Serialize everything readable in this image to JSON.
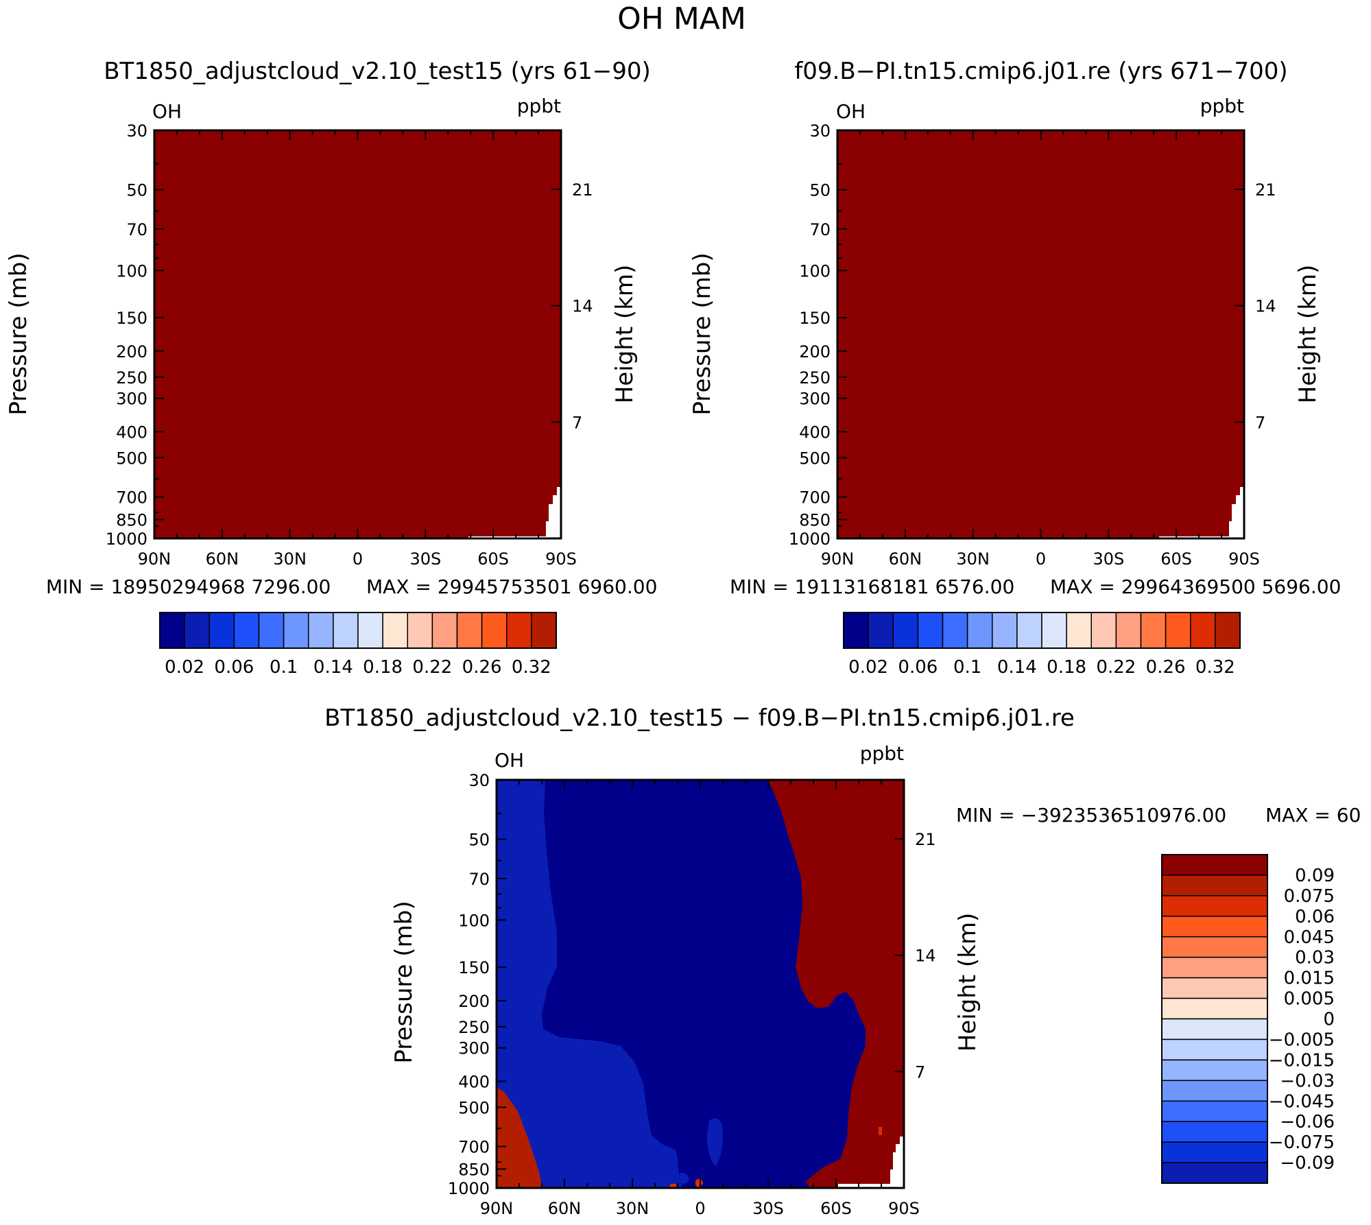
{
  "page_title": "OH  MAM",
  "colors": {
    "plot_fill": "#8B0000",
    "border": "#000000",
    "hole": "#ffffff",
    "diff_colors": [
      "#00008B",
      "#0A1EB4",
      "#0A32DC",
      "#1E50FA",
      "#3C6EFF",
      "#6E96FF",
      "#96B4FF",
      "#BED2FF",
      "#DCE6FA",
      "#FFE6D2",
      "#FFC8B4",
      "#FFA082",
      "#FF7846",
      "#FF5A1E",
      "#DC2D05",
      "#B41E00",
      "#8B0000"
    ],
    "abs_colors": [
      "#00008B",
      "#0A1EB4",
      "#0A32DC",
      "#1E50FA",
      "#3C6EFF",
      "#6E96FF",
      "#96B4FF",
      "#BED2FF",
      "#DCE6FA",
      "#FFE6D2",
      "#FFC8B4",
      "#FFA082",
      "#FF7846",
      "#FF5A1E",
      "#DC2D05",
      "#B41E00",
      "#8B0000"
    ]
  },
  "chart_data": [
    {
      "id": "panel_left",
      "type": "heatmap",
      "title": "BT1850_adjustcloud_v2.10_test15 (yrs 61−90)",
      "variable_label": "OH",
      "units_label": "ppbt",
      "xlabel": "",
      "ylabel": "Pressure (mb)",
      "y2label": "Height (km)",
      "x_ticks": [
        "90N",
        "60N",
        "30N",
        "0",
        "30S",
        "60S",
        "90S"
      ],
      "x_values": [
        90,
        60,
        30,
        0,
        -30,
        -60,
        -90
      ],
      "y_ticks": [
        "30",
        "50",
        "70",
        "100",
        "150",
        "200",
        "250",
        "300",
        "400",
        "500",
        "700",
        "850",
        "1000"
      ],
      "y_values": [
        30,
        50,
        70,
        100,
        150,
        200,
        250,
        300,
        400,
        500,
        700,
        850,
        1000
      ],
      "y2_ticks": [
        "21",
        "14",
        "7"
      ],
      "y2_values": [
        21,
        14,
        7
      ],
      "ylim": [
        1000,
        30
      ],
      "xlim": [
        90,
        -90
      ],
      "min_label": "MIN = 18950294968 7296.00",
      "min_text": "MIN = 18950294968729 6.00",
      "stats_text": "MIN = 18950294968 7296.00   MAX = 29945753501 6960.00",
      "stats": "MIN = 18950294968 7296.00",
      "min": "18950294968 7296.00",
      "max": "29945753501 6960.00",
      "field": "uniform maximum (darkest red) everywhere",
      "colorbar_labels": [
        "0.02",
        "0.06",
        "0.1",
        "0.14",
        "0.18",
        "0.22",
        "0.26",
        "0.32"
      ]
    },
    {
      "id": "panel_right",
      "type": "heatmap",
      "title": "f09.B−PI.tn15.cmip6.j01.re (yrs 671−700)",
      "variable_label": "OH",
      "units_label": "ppbt",
      "ylabel": "Pressure (mb)",
      "y2label": "Height (km)",
      "x_ticks": [
        "90N",
        "60N",
        "30N",
        "0",
        "30S",
        "60S",
        "90S"
      ],
      "y_ticks": [
        "30",
        "50",
        "70",
        "100",
        "150",
        "200",
        "250",
        "300",
        "400",
        "500",
        "700",
        "850",
        "1000"
      ],
      "y2_ticks": [
        "21",
        "14",
        "7"
      ],
      "min": "19113168181 6576.00",
      "max": "29964369500 5696.00",
      "colorbar_labels": [
        "0.02",
        "0.06",
        "0.1",
        "0.14",
        "0.18",
        "0.22",
        "0.26",
        "0.32"
      ]
    },
    {
      "id": "panel_diff",
      "type": "heatmap",
      "title": "BT1850_adjustcloud_v2.10_test15 − f09.B−PI.tn15.cmip6.j01.re",
      "variable_label": "OH",
      "units_label": "ppbt",
      "ylabel": "Pressure (mb)",
      "y2label": "Height (km)",
      "x_ticks": [
        "90N",
        "60N",
        "30N",
        "0",
        "30S",
        "60S",
        "90S"
      ],
      "y_ticks": [
        "30",
        "50",
        "70",
        "100",
        "150",
        "200",
        "250",
        "300",
        "400",
        "500",
        "700",
        "850",
        "1000"
      ],
      "y2_ticks": [
        "21",
        "14",
        "7"
      ],
      "min": "−3923536510976.00",
      "max": "60",
      "colorbar_labels": [
        "0.09",
        "0.075",
        "0.06",
        "0.045",
        "0.03",
        "0.015",
        "0.005",
        "0",
        "−0.005",
        "−0.015",
        "−0.03",
        "−0.045",
        "−0.06",
        "−0.075",
        "−0.09"
      ]
    }
  ],
  "labels": {
    "left_min": "MIN = 18950294968 7296.00",
    "left_max": "MAX = 29945753501 6960.00",
    "right_min": "MIN = 19113168181 6576.00",
    "right_max": "MAX = 29964369500 5696.00",
    "diff_min": "MIN = −3923536510976.00",
    "diff_max": "MAX = 60"
  }
}
